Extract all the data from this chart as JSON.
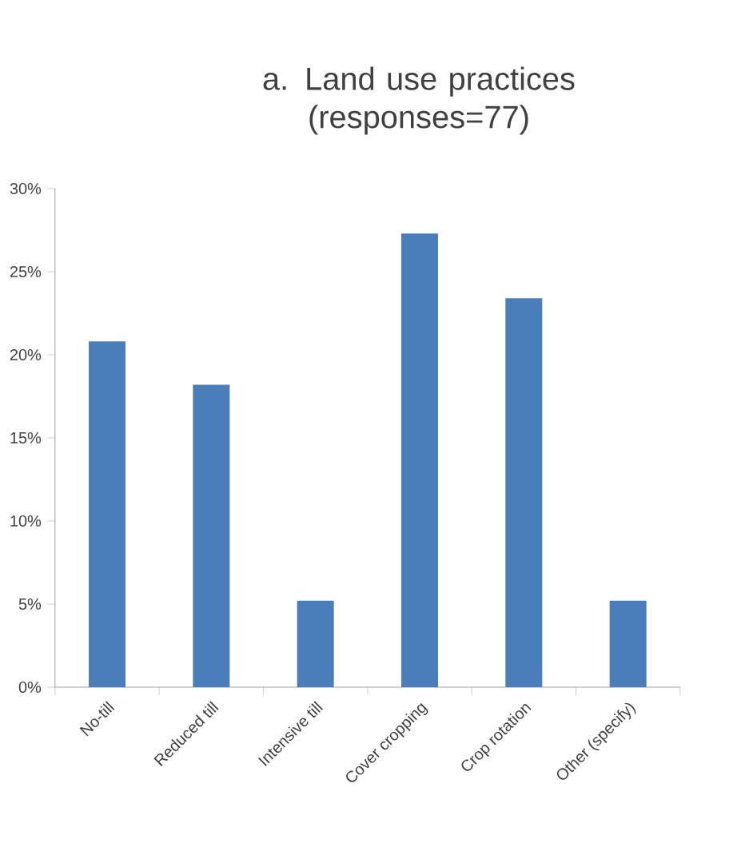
{
  "chart_data": {
    "type": "bar",
    "title": "a. Land use practices (responses=77)",
    "categories": [
      "No-till",
      "Reduced till",
      "Intensive till",
      "Cover cropping",
      "Crop rotation",
      "Other (specify)"
    ],
    "values": [
      20.8,
      18.2,
      5.2,
      27.3,
      23.4,
      5.2
    ],
    "color": "#4a7ebb",
    "ylim": [
      0,
      30
    ],
    "yticks": [
      {
        "value": 0,
        "label": "0%"
      },
      {
        "value": 5,
        "label": "5%"
      },
      {
        "value": 10,
        "label": "10%"
      },
      {
        "value": 15,
        "label": "15%"
      },
      {
        "value": 20,
        "label": "20%"
      },
      {
        "value": 25,
        "label": "25%"
      },
      {
        "value": 30,
        "label": "30%"
      }
    ]
  }
}
